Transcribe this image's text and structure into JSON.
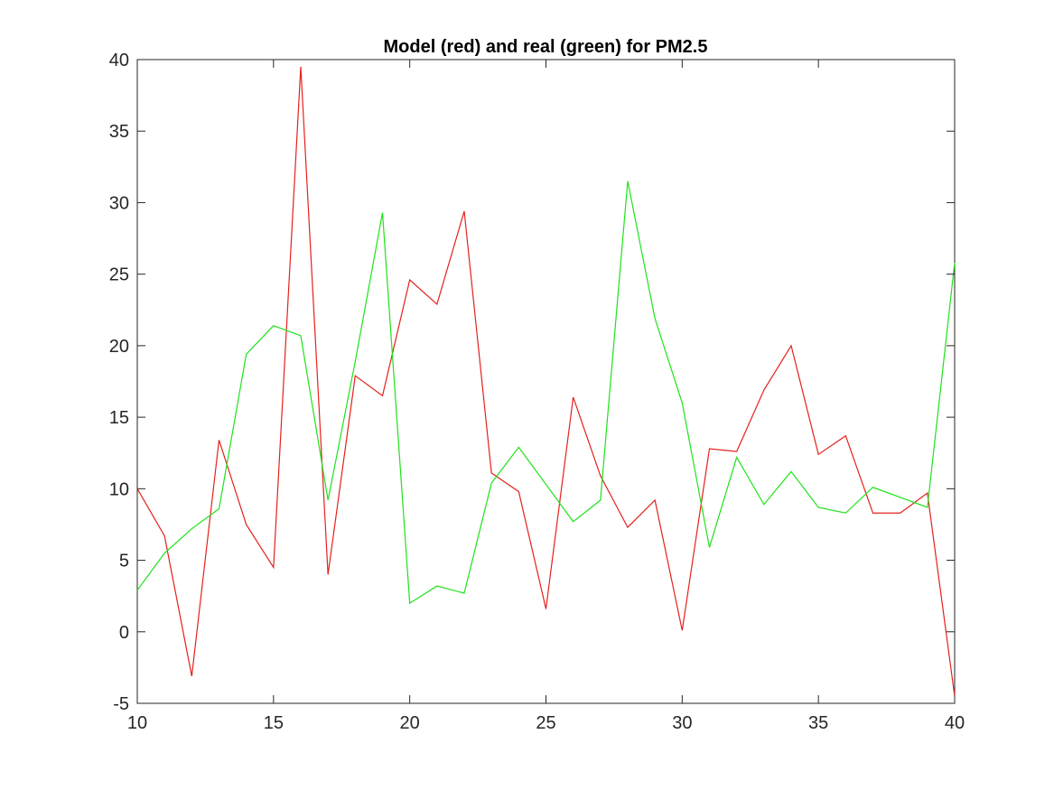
{
  "chart_data": {
    "type": "line",
    "title": "Model (red) and real (green) for PM2.5",
    "xlabel": "",
    "ylabel": "",
    "xlim": [
      10,
      40
    ],
    "ylim": [
      -5,
      40
    ],
    "xticks": [
      10,
      15,
      20,
      25,
      30,
      35,
      40
    ],
    "yticks": [
      -5,
      0,
      5,
      10,
      15,
      20,
      25,
      30,
      35,
      40
    ],
    "grid": false,
    "x": [
      10,
      11,
      12,
      13,
      14,
      15,
      16,
      17,
      18,
      19,
      20,
      21,
      22,
      23,
      24,
      25,
      26,
      27,
      28,
      29,
      30,
      31,
      32,
      33,
      34,
      35,
      36,
      37,
      38,
      39,
      40
    ],
    "series": [
      {
        "color": "#e4211c",
        "values": [
          10.0,
          6.7,
          -3.1,
          13.4,
          7.5,
          4.5,
          39.5,
          4.0,
          17.9,
          16.5,
          24.6,
          22.9,
          29.4,
          11.1,
          9.8,
          1.6,
          16.4,
          10.9,
          7.3,
          9.2,
          0.1,
          12.8,
          12.6,
          16.9,
          20.0,
          12.4,
          13.7,
          8.3,
          8.3,
          9.7,
          -4.5
        ]
      },
      {
        "color": "#1ee21a",
        "values": [
          2.9,
          5.5,
          7.2,
          8.6,
          19.4,
          21.4,
          20.7,
          9.2,
          18.9,
          29.3,
          2.0,
          3.2,
          2.7,
          10.4,
          12.9,
          10.3,
          7.7,
          9.2,
          31.5,
          21.9,
          16.0,
          5.9,
          12.2,
          8.9,
          11.2,
          8.7,
          8.3,
          10.1,
          9.4,
          8.7,
          25.8
        ]
      }
    ]
  }
}
